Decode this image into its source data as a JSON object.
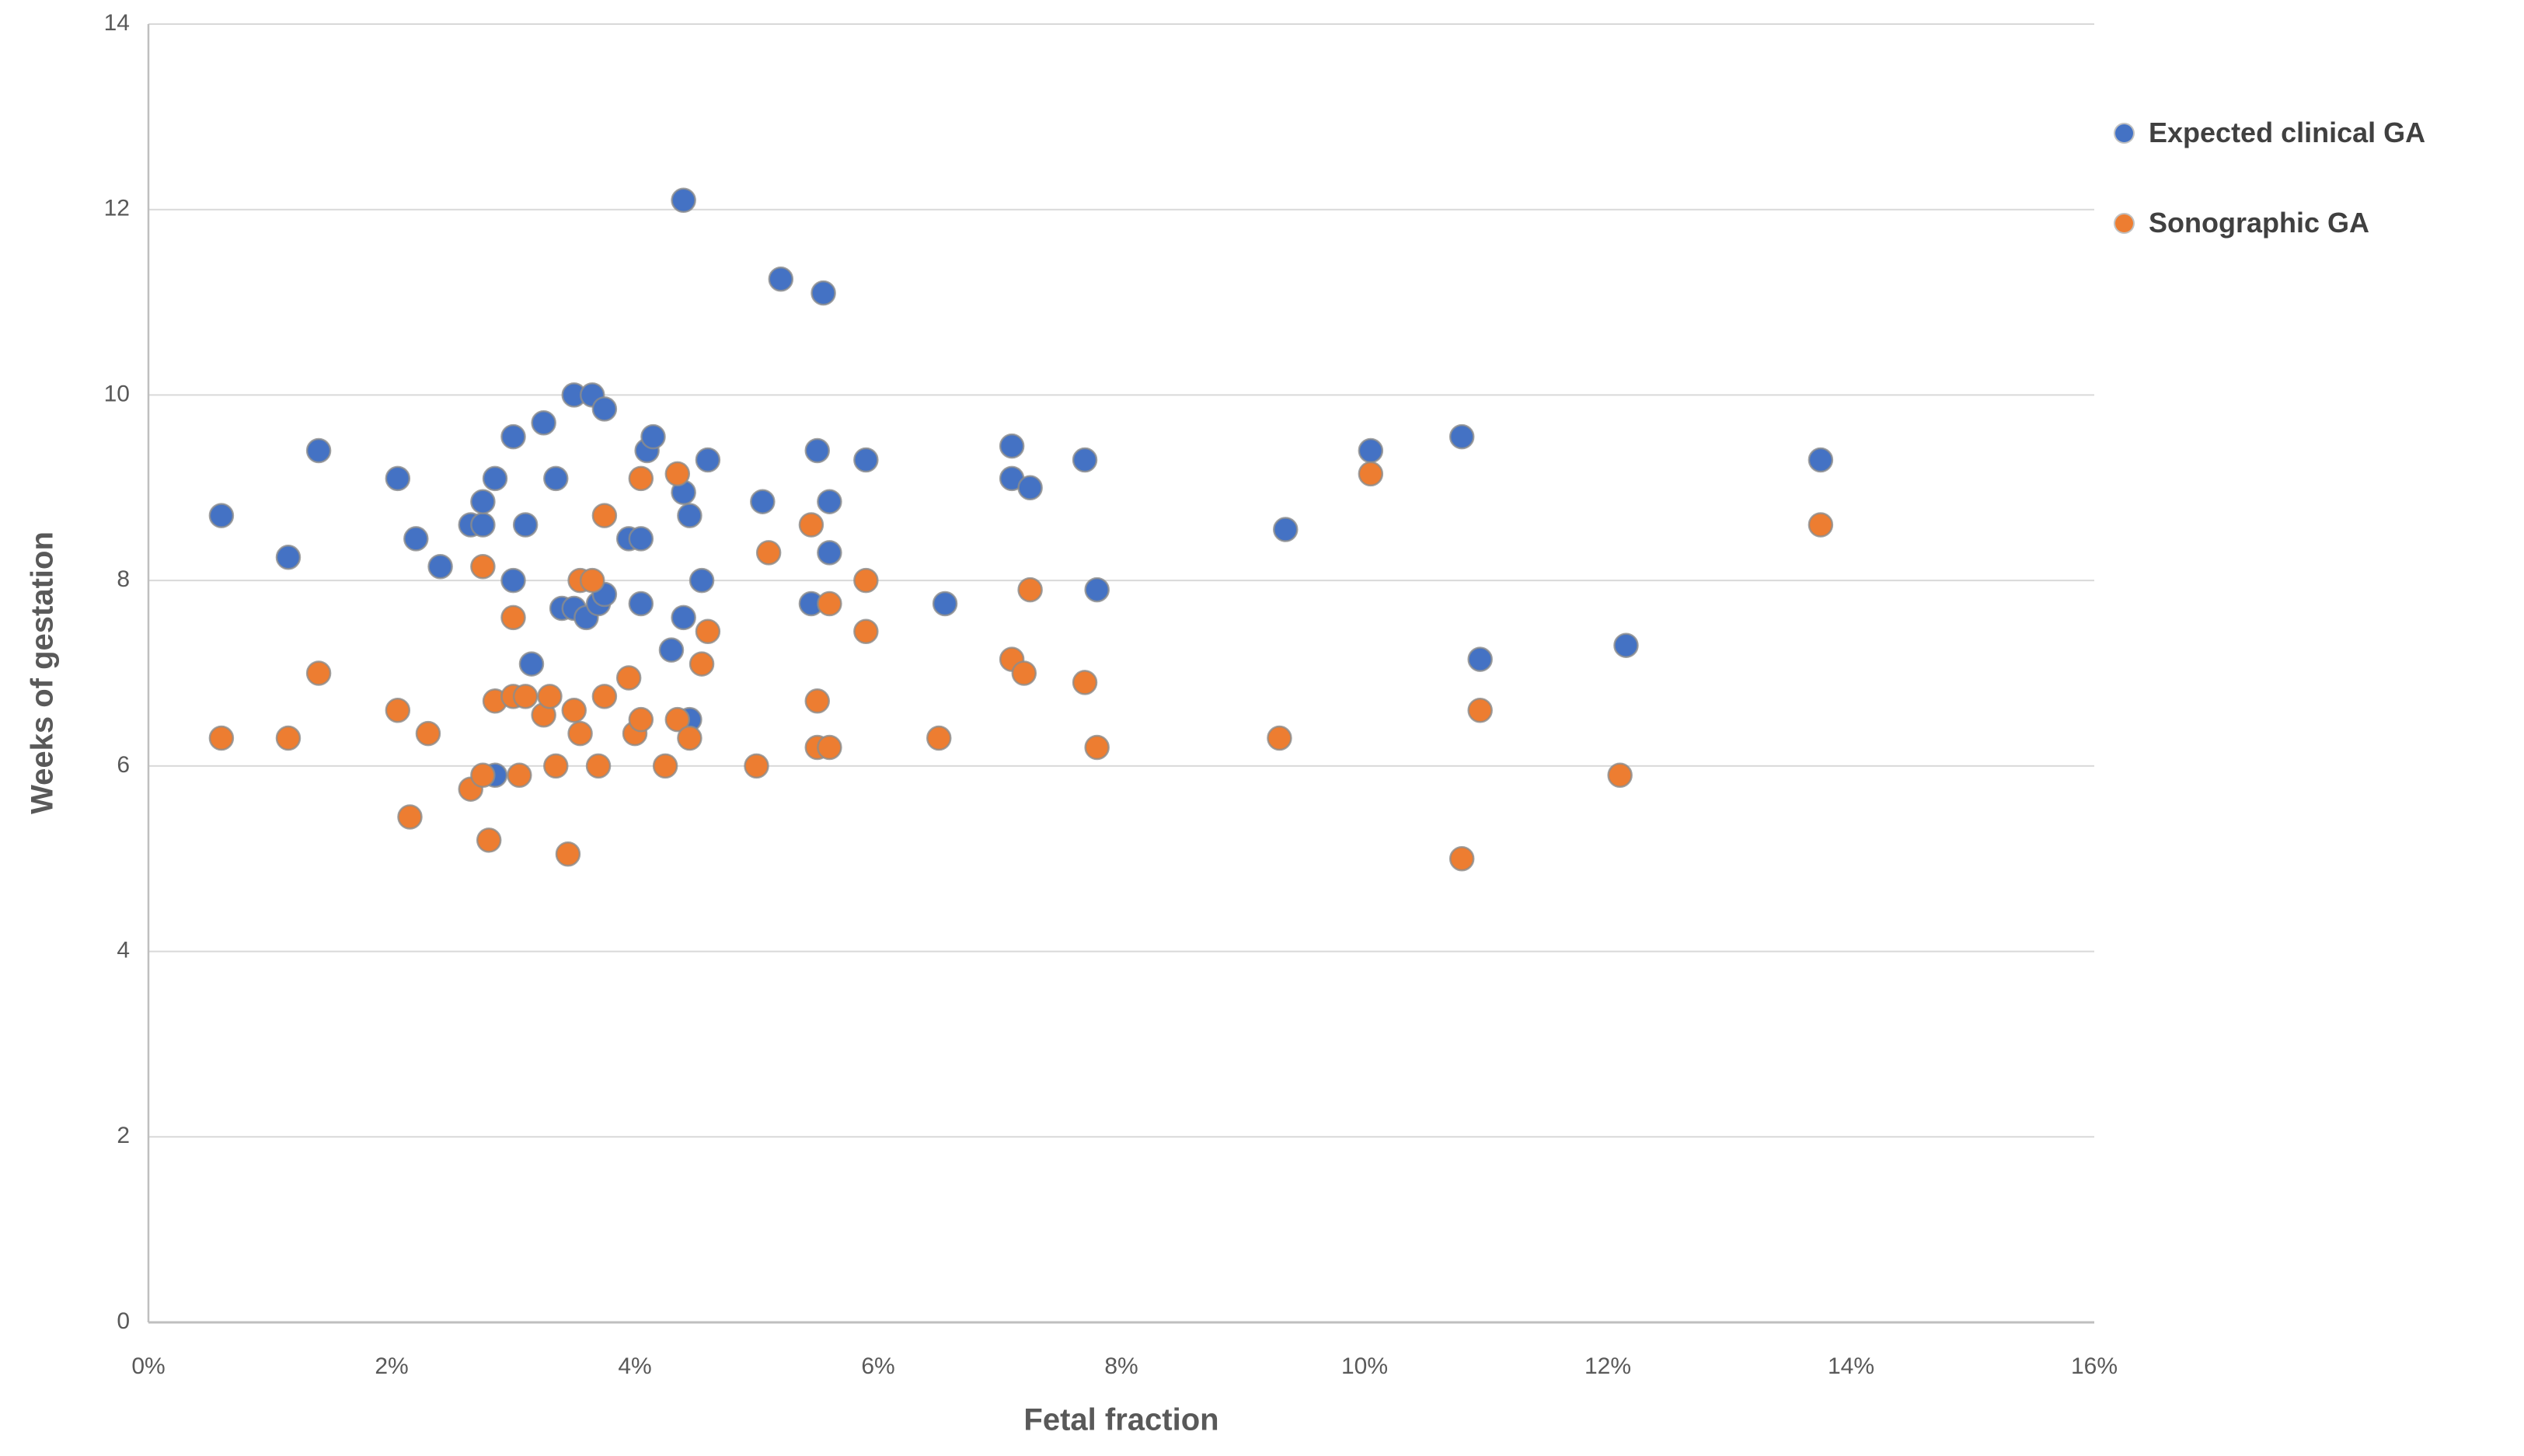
{
  "chart_data": {
    "type": "scatter",
    "title": "",
    "xlabel": "Fetal fraction",
    "ylabel": "Weeks of gestation",
    "xlim": [
      0,
      16
    ],
    "ylim": [
      0,
      14
    ],
    "grid": "horizontal",
    "legend_position": "right",
    "x_ticks": [
      {
        "value": 0,
        "label": "0%"
      },
      {
        "value": 2,
        "label": "2%"
      },
      {
        "value": 4,
        "label": "4%"
      },
      {
        "value": 6,
        "label": "6%"
      },
      {
        "value": 8,
        "label": "8%"
      },
      {
        "value": 10,
        "label": "10%"
      },
      {
        "value": 12,
        "label": "12%"
      },
      {
        "value": 14,
        "label": "14%"
      },
      {
        "value": 16,
        "label": "16%"
      }
    ],
    "y_ticks": [
      {
        "value": 0,
        "label": "0"
      },
      {
        "value": 2,
        "label": "2"
      },
      {
        "value": 4,
        "label": "4"
      },
      {
        "value": 6,
        "label": "6"
      },
      {
        "value": 8,
        "label": "8"
      },
      {
        "value": 10,
        "label": "10"
      },
      {
        "value": 12,
        "label": "12"
      },
      {
        "value": 14,
        "label": "14"
      }
    ],
    "colors": {
      "gridline": "#D9D9D9",
      "axis_line": "#BFBFBF",
      "tick_text": "#595959",
      "point_outline": "#8C8C8C"
    },
    "series": [
      {
        "name": "Expected clinical GA",
        "color": "#4472C4",
        "x_unit": "percent",
        "y_unit": "weeks",
        "points": [
          [
            0.6,
            8.7
          ],
          [
            1.15,
            8.25
          ],
          [
            1.4,
            9.4
          ],
          [
            2.05,
            9.1
          ],
          [
            2.2,
            8.45
          ],
          [
            2.4,
            8.15
          ],
          [
            2.65,
            8.6
          ],
          [
            2.75,
            8.6
          ],
          [
            2.75,
            8.85
          ],
          [
            2.85,
            9.1
          ],
          [
            2.85,
            5.9
          ],
          [
            3.0,
            9.55
          ],
          [
            3.0,
            8.0
          ],
          [
            3.1,
            8.6
          ],
          [
            3.15,
            7.1
          ],
          [
            3.25,
            9.7
          ],
          [
            3.35,
            9.1
          ],
          [
            3.4,
            7.7
          ],
          [
            3.5,
            7.7
          ],
          [
            3.5,
            10.0
          ],
          [
            3.65,
            10.0
          ],
          [
            3.6,
            7.6
          ],
          [
            3.7,
            7.75
          ],
          [
            3.75,
            9.85
          ],
          [
            3.75,
            7.85
          ],
          [
            3.95,
            8.45
          ],
          [
            4.05,
            8.45
          ],
          [
            4.05,
            7.75
          ],
          [
            4.1,
            9.4
          ],
          [
            4.15,
            9.55
          ],
          [
            4.3,
            7.25
          ],
          [
            4.4,
            12.1
          ],
          [
            4.4,
            8.95
          ],
          [
            4.4,
            7.6
          ],
          [
            4.45,
            8.7
          ],
          [
            4.45,
            6.5
          ],
          [
            4.55,
            8.0
          ],
          [
            4.6,
            9.3
          ],
          [
            5.05,
            8.85
          ],
          [
            5.2,
            11.25
          ],
          [
            5.45,
            7.75
          ],
          [
            5.5,
            9.4
          ],
          [
            5.55,
            11.1
          ],
          [
            5.6,
            8.85
          ],
          [
            5.6,
            8.3
          ],
          [
            5.9,
            9.3
          ],
          [
            6.55,
            7.75
          ],
          [
            7.1,
            9.45
          ],
          [
            7.1,
            9.1
          ],
          [
            7.25,
            9.0
          ],
          [
            7.7,
            9.3
          ],
          [
            7.8,
            7.9
          ],
          [
            9.35,
            8.55
          ],
          [
            10.05,
            9.4
          ],
          [
            10.8,
            9.55
          ],
          [
            10.95,
            7.15
          ],
          [
            12.15,
            7.3
          ],
          [
            13.75,
            9.3
          ]
        ]
      },
      {
        "name": "Sonographic GA",
        "color": "#ED7D31",
        "x_unit": "percent",
        "y_unit": "weeks",
        "points": [
          [
            0.6,
            6.3
          ],
          [
            1.15,
            6.3
          ],
          [
            1.4,
            7.0
          ],
          [
            2.05,
            6.6
          ],
          [
            2.15,
            5.45
          ],
          [
            2.3,
            6.35
          ],
          [
            2.65,
            5.75
          ],
          [
            2.75,
            5.9
          ],
          [
            2.75,
            8.15
          ],
          [
            2.8,
            5.2
          ],
          [
            2.85,
            6.7
          ],
          [
            3.0,
            6.75
          ],
          [
            3.0,
            7.6
          ],
          [
            3.05,
            5.9
          ],
          [
            3.1,
            6.75
          ],
          [
            3.25,
            6.55
          ],
          [
            3.3,
            6.75
          ],
          [
            3.35,
            6.0
          ],
          [
            3.45,
            5.05
          ],
          [
            3.5,
            6.6
          ],
          [
            3.55,
            6.35
          ],
          [
            3.55,
            8.0
          ],
          [
            3.65,
            8.0
          ],
          [
            3.7,
            6.0
          ],
          [
            3.75,
            8.7
          ],
          [
            3.75,
            6.75
          ],
          [
            3.95,
            6.95
          ],
          [
            4.0,
            6.35
          ],
          [
            4.05,
            6.5
          ],
          [
            4.05,
            9.1
          ],
          [
            4.25,
            6.0
          ],
          [
            4.35,
            9.15
          ],
          [
            4.35,
            6.5
          ],
          [
            4.45,
            6.3
          ],
          [
            4.55,
            7.1
          ],
          [
            4.6,
            7.45
          ],
          [
            5.0,
            6.0
          ],
          [
            5.1,
            8.3
          ],
          [
            5.45,
            8.6
          ],
          [
            5.5,
            6.7
          ],
          [
            5.5,
            6.2
          ],
          [
            5.6,
            6.2
          ],
          [
            5.6,
            7.75
          ],
          [
            5.9,
            8.0
          ],
          [
            5.9,
            7.45
          ],
          [
            6.5,
            6.3
          ],
          [
            7.1,
            7.15
          ],
          [
            7.2,
            7.0
          ],
          [
            7.25,
            7.9
          ],
          [
            7.7,
            6.9
          ],
          [
            7.8,
            6.2
          ],
          [
            9.3,
            6.3
          ],
          [
            10.05,
            9.15
          ],
          [
            10.8,
            5.0
          ],
          [
            10.95,
            6.6
          ],
          [
            12.1,
            5.9
          ],
          [
            13.75,
            8.6
          ]
        ]
      }
    ]
  }
}
